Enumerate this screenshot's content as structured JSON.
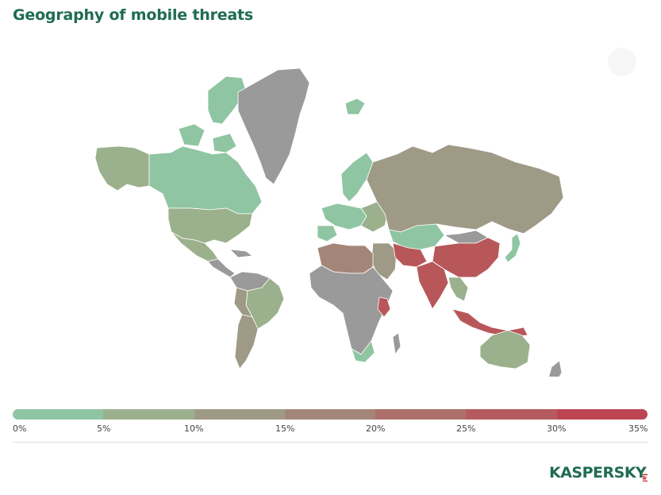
{
  "title": "Geography of mobile threats",
  "legend": {
    "ticks": [
      "0%",
      "5%",
      "10%",
      "15%",
      "20%",
      "25%",
      "30%",
      "35%"
    ],
    "colors": [
      "#8fc5a2",
      "#9bb08c",
      "#9e9a86",
      "#a48678",
      "#ad706a",
      "#b55a5e",
      "#bc4651"
    ]
  },
  "map_colors": {
    "no_data": "#9a9a9a",
    "low": "#8fc5a2",
    "low_mid": "#9bb08c",
    "mid": "#9e9a86",
    "mid_high": "#a48678",
    "high": "#b8575a"
  },
  "regions": [
    {
      "name": "Greenland",
      "level": "no_data"
    },
    {
      "name": "Canada",
      "level": "low"
    },
    {
      "name": "Alaska",
      "level": "low_mid"
    },
    {
      "name": "United States",
      "level": "low_mid"
    },
    {
      "name": "Mexico",
      "level": "low_mid"
    },
    {
      "name": "Brazil",
      "level": "low_mid"
    },
    {
      "name": "Russia",
      "level": "mid"
    },
    {
      "name": "China",
      "level": "high"
    },
    {
      "name": "India",
      "level": "high"
    },
    {
      "name": "Iran",
      "level": "high"
    },
    {
      "name": "Algeria",
      "level": "mid_high"
    },
    {
      "name": "Australia",
      "level": "low_mid"
    },
    {
      "name": "Indonesia",
      "level": "high"
    }
  ],
  "logo": {
    "text": "KASPERSKY",
    "suffix": "lab",
    "color": "#1f6b54",
    "accent": "#cc2027"
  }
}
